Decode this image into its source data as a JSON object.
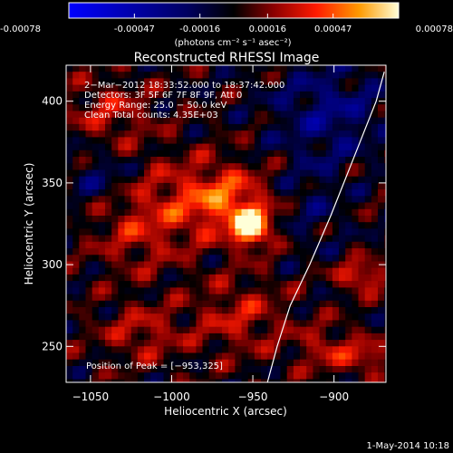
{
  "chart_data": {
    "type": "heatmap",
    "title": "Reconstructed RHESSI Image",
    "xlabel": "Heliocentric X (arcsec)",
    "ylabel": "Heliocentric Y (arcsec)",
    "xlim": [
      -1065,
      -868
    ],
    "ylim": [
      228,
      422
    ],
    "xticks": [
      -1050,
      -1000,
      -950,
      -900
    ],
    "yticks": [
      250,
      300,
      350,
      400
    ],
    "xtick_labels": [
      "−1050",
      "−1000",
      "−950",
      "−900"
    ],
    "ytick_labels": [
      "250",
      "300",
      "350",
      "400"
    ],
    "colorbar": {
      "range": [
        -0.00078,
        0.00078
      ],
      "ticks": [
        -0.00078,
        -0.00047,
        -0.00016,
        0.00016,
        0.00047,
        0.00078
      ],
      "tick_labels": [
        "-0.00078",
        "-0.00047",
        "-0.00016",
        "0.00016",
        "0.00047",
        "0.00078"
      ],
      "units_label": "(photons cm⁻² s⁻¹ asec⁻²)"
    },
    "annotations": [
      "2−Mar−2012 18:33:52.000 to 18:37:42.000",
      "Detectors: 3F 5F 6F 7F 8F 9F, Att 0",
      "Energy Range: 25.0 − 50.0 keV",
      "Clean    Total counts: 4.35E+03"
    ],
    "peak_label": "Position of Peak = [−953,325]",
    "peak_position": [
      -953,
      325
    ],
    "limb_curve": [
      [
        -941,
        228
      ],
      [
        -935,
        250
      ],
      [
        -927,
        275
      ],
      [
        -915,
        300
      ],
      [
        -902,
        330
      ],
      [
        -888,
        365
      ],
      [
        -874,
        400
      ],
      [
        -869,
        418
      ]
    ],
    "sources": [
      {
        "x": -953,
        "y": 325,
        "amp": 0.00078,
        "sx": 8,
        "sy": 8
      },
      {
        "x": -968,
        "y": 342,
        "amp": 0.00038,
        "sx": 18,
        "sy": 14
      },
      {
        "x": -1000,
        "y": 340,
        "amp": 0.00022,
        "sx": 25,
        "sy": 20
      },
      {
        "x": -1025,
        "y": 320,
        "amp": 0.00018,
        "sx": 18,
        "sy": 18
      },
      {
        "x": -960,
        "y": 270,
        "amp": 0.00025,
        "sx": 20,
        "sy": 16
      },
      {
        "x": -1020,
        "y": 260,
        "amp": 0.00024,
        "sx": 18,
        "sy": 12
      },
      {
        "x": -885,
        "y": 295,
        "amp": 0.00042,
        "sx": 10,
        "sy": 6
      },
      {
        "x": -905,
        "y": 250,
        "amp": 0.00026,
        "sx": 14,
        "sy": 10
      },
      {
        "x": -1040,
        "y": 395,
        "amp": 0.00024,
        "sx": 18,
        "sy": 14
      },
      {
        "x": -880,
        "y": 245,
        "amp": 0.0003,
        "sx": 8,
        "sy": 6
      },
      {
        "x": -905,
        "y": 395,
        "amp": -0.00028,
        "sx": 24,
        "sy": 20
      },
      {
        "x": -1045,
        "y": 355,
        "amp": -0.0002,
        "sx": 14,
        "sy": 12
      },
      {
        "x": -915,
        "y": 340,
        "amp": -0.00014,
        "sx": 14,
        "sy": 20
      }
    ]
  },
  "footer": {
    "date": "1-May-2014 10:18"
  }
}
